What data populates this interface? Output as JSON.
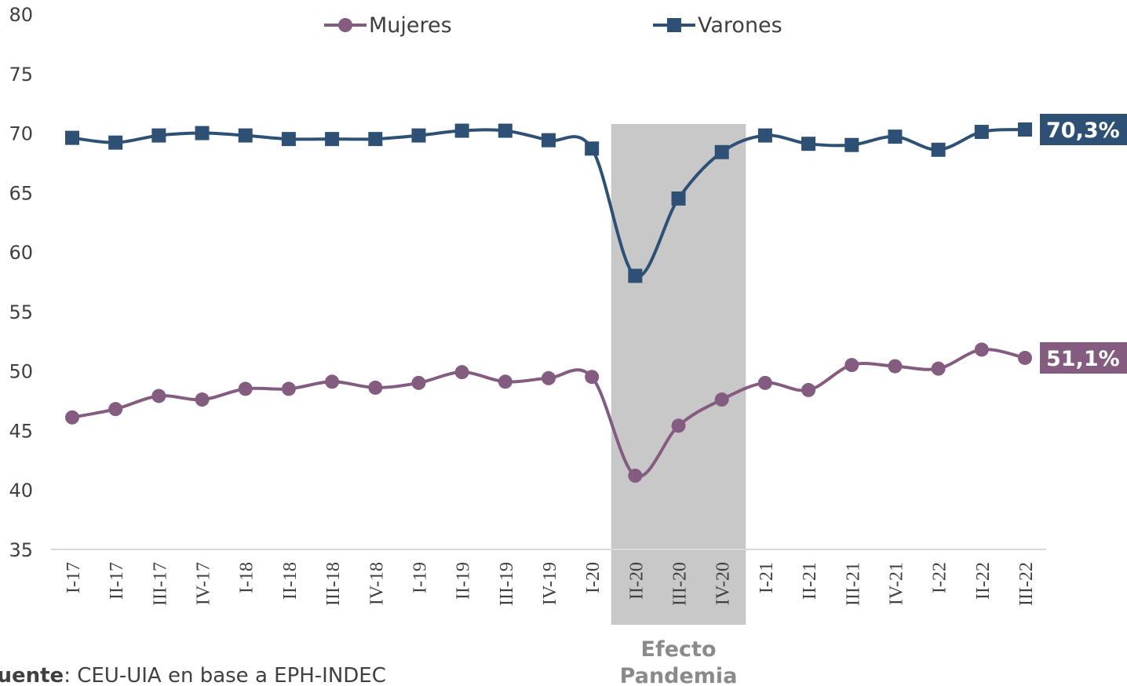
{
  "chart_data": {
    "type": "line",
    "categories": [
      "I-17",
      "II-17",
      "III-17",
      "IV-17",
      "I-18",
      "II-18",
      "III-18",
      "IV-18",
      "I-19",
      "II-19",
      "III-19",
      "IV-19",
      "I-20",
      "II-20",
      "III-20",
      "IV-20",
      "I-21",
      "II-21",
      "III-21",
      "IV-21",
      "I-22",
      "II-22",
      "III-22"
    ],
    "series": [
      {
        "name": "Mujeres",
        "color": "#835c80",
        "marker": "circle",
        "values": [
          46.1,
          46.8,
          47.9,
          47.6,
          48.5,
          48.5,
          49.1,
          48.6,
          49.0,
          49.9,
          49.1,
          49.4,
          49.5,
          41.2,
          45.4,
          47.6,
          49.0,
          48.4,
          50.5,
          50.4,
          50.2,
          51.8,
          51.1
        ],
        "value_labels": [
          null,
          null,
          null,
          null,
          null,
          null,
          null,
          null,
          null,
          null,
          null,
          null,
          null,
          null,
          null,
          null,
          null,
          null,
          null,
          null,
          null,
          null,
          "51,1%"
        ]
      },
      {
        "name": "Varones",
        "color": "#2e5075",
        "marker": "square",
        "values": [
          69.6,
          69.2,
          69.8,
          70.0,
          69.8,
          69.5,
          69.5,
          69.5,
          69.8,
          70.2,
          70.2,
          69.4,
          68.7,
          58.0,
          64.5,
          68.4,
          69.8,
          69.1,
          69.0,
          69.7,
          68.6,
          70.1,
          70.3
        ],
        "value_labels": [
          null,
          null,
          null,
          null,
          null,
          null,
          null,
          null,
          null,
          null,
          null,
          null,
          null,
          null,
          null,
          null,
          null,
          null,
          null,
          null,
          null,
          null,
          "70,3%"
        ]
      }
    ],
    "ylim": [
      35,
      80
    ],
    "yticks": [
      35,
      40,
      45,
      50,
      55,
      60,
      65,
      70,
      75,
      80
    ],
    "grid": false,
    "legend": "top",
    "shade": {
      "from": "II-20",
      "to": "IV-20",
      "color": "#c8c8c8",
      "label": [
        "Efecto",
        "Pandemia"
      ]
    },
    "source": {
      "label": "Fuente",
      "text": ": CEU-UIA en base a EPH-INDEC"
    }
  }
}
